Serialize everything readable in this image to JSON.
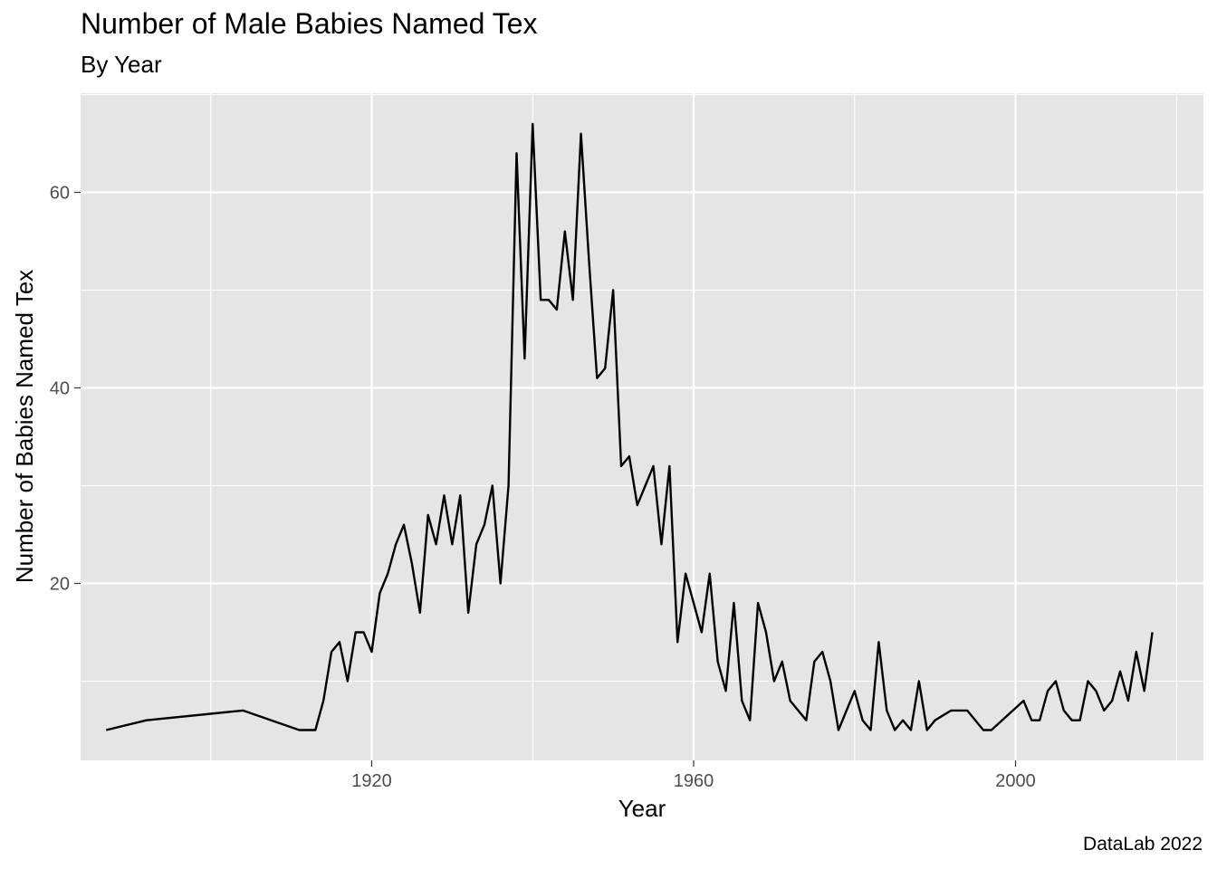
{
  "chart_data": {
    "type": "line",
    "title": "Number of Male Babies Named Tex",
    "subtitle": "By Year",
    "caption": "DataLab 2022",
    "xlabel": "Year",
    "ylabel": "Number of Babies Named Tex",
    "xlim": [
      1880,
      2020
    ],
    "ylim": [
      0,
      70
    ],
    "x_ticks": [
      1920,
      1960,
      2000
    ],
    "y_ticks": [
      20,
      40,
      60
    ],
    "grid": true,
    "legend": "none",
    "colors": {
      "panel_background": "#e5e5e5",
      "grid_line": "#ffffff",
      "series_line": "#000000",
      "axis_text": "#4d4d4d"
    },
    "series": [
      {
        "x": [
          1887,
          1892,
          1904,
          1911,
          1912,
          1913,
          1914,
          1915,
          1916,
          1917,
          1918,
          1919,
          1920,
          1921,
          1922,
          1923,
          1924,
          1925,
          1926,
          1927,
          1928,
          1929,
          1930,
          1931,
          1932,
          1933,
          1934,
          1935,
          1936,
          1937,
          1938,
          1939,
          1940,
          1941,
          1942,
          1943,
          1944,
          1945,
          1946,
          1947,
          1948,
          1949,
          1950,
          1951,
          1952,
          1953,
          1954,
          1955,
          1956,
          1957,
          1958,
          1959,
          1960,
          1961,
          1962,
          1963,
          1964,
          1965,
          1966,
          1967,
          1968,
          1969,
          1970,
          1971,
          1972,
          1974,
          1975,
          1976,
          1977,
          1978,
          1980,
          1981,
          1982,
          1983,
          1984,
          1985,
          1986,
          1987,
          1988,
          1989,
          1990,
          1992,
          1994,
          1996,
          1997,
          2001,
          2002,
          2003,
          2004,
          2005,
          2006,
          2007,
          2008,
          2009,
          2010,
          2011,
          2012,
          2013,
          2014,
          2015,
          2016,
          2017
        ],
        "y": [
          5,
          6,
          7,
          5,
          5,
          5,
          8,
          13,
          14,
          10,
          15,
          15,
          13,
          19,
          21,
          24,
          26,
          22,
          17,
          27,
          24,
          29,
          24,
          29,
          17,
          24,
          26,
          30,
          20,
          30,
          64,
          43,
          67,
          49,
          49,
          48,
          56,
          49,
          66,
          53,
          41,
          42,
          50,
          32,
          33,
          28,
          30,
          32,
          24,
          32,
          14,
          21,
          18,
          15,
          21,
          12,
          9,
          18,
          8,
          6,
          18,
          15,
          10,
          12,
          8,
          6,
          12,
          13,
          10,
          5,
          9,
          6,
          5,
          14,
          7,
          5,
          6,
          5,
          10,
          5,
          6,
          7,
          7,
          5,
          5,
          8,
          6,
          6,
          9,
          10,
          7,
          6,
          6,
          10,
          9,
          7,
          8,
          11,
          8,
          13,
          9,
          15
        ]
      }
    ]
  }
}
